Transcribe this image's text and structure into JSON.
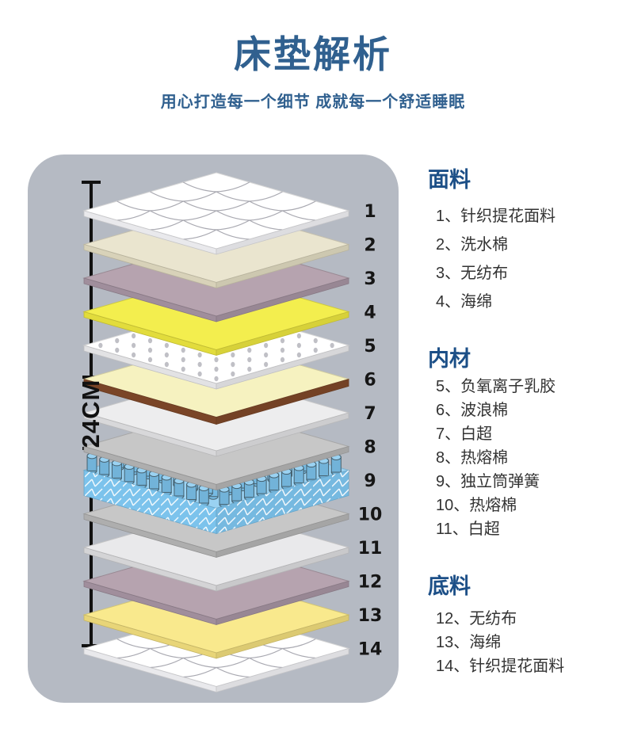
{
  "title": "床垫解析",
  "subtitle": "用心打造每一个细节 成就每一个舒适睡眠",
  "measure": {
    "label": "24CM"
  },
  "colors": {
    "title": "#30608f",
    "heading": "#1c4f87",
    "panel_bg": "#b5bac3",
    "number": "#161616",
    "measure_line": "#111111"
  },
  "layers": [
    {
      "num": "1",
      "style": "quilt",
      "top": "#ffffff",
      "side": "#e9e9ec"
    },
    {
      "num": "2",
      "style": "plain",
      "top": "#eae5cf",
      "side": "#d8d2b9"
    },
    {
      "num": "3",
      "style": "plain",
      "top": "#b6a3af",
      "side": "#a08e9c"
    },
    {
      "num": "4",
      "style": "plain",
      "top": "#f3ee4e",
      "side": "#e2dc3c"
    },
    {
      "num": "5",
      "style": "dots",
      "top": "#ffffff",
      "side": "#e2e2e4",
      "dot": "#c0c0c6"
    },
    {
      "num": "6",
      "style": "plain",
      "top": "#f6f2c0",
      "side": "#7a4527",
      "thick": 9
    },
    {
      "num": "7",
      "style": "plain",
      "top": "#ededee",
      "side": "#d8d8da"
    },
    {
      "num": "8",
      "style": "plain",
      "top": "#c7c7c7",
      "side": "#aeaeae"
    },
    {
      "num": "9",
      "style": "springs",
      "top": "#9ad2f2",
      "side": "#7cc3ec",
      "thick": 32
    },
    {
      "num": "10",
      "style": "plain",
      "top": "#c7c7c7",
      "side": "#aeaeae"
    },
    {
      "num": "11",
      "style": "plain",
      "top": "#e9e9eb",
      "side": "#d4d4d6"
    },
    {
      "num": "12",
      "style": "plain",
      "top": "#b6a3af",
      "side": "#a08e9c"
    },
    {
      "num": "13",
      "style": "plain",
      "top": "#f9e98d",
      "side": "#e8d578"
    },
    {
      "num": "14",
      "style": "quilt",
      "top": "#ffffff",
      "side": "#e9e9ec"
    }
  ],
  "legend": {
    "sections": [
      {
        "heading": "面料",
        "items": [
          "1、针织提花面料",
          "2、洗水棉",
          "3、无纺布",
          "4、海绵"
        ]
      },
      {
        "heading": "内材",
        "items": [
          "5、负氧离子乳胶",
          "6、波浪棉",
          "7、白超",
          "8、热熔棉",
          "9、独立筒弹簧",
          "10、热熔棉",
          "11、白超"
        ]
      },
      {
        "heading": "底料",
        "items": [
          "12、无纺布",
          "13、海绵",
          "14、针织提花面料"
        ]
      }
    ]
  }
}
